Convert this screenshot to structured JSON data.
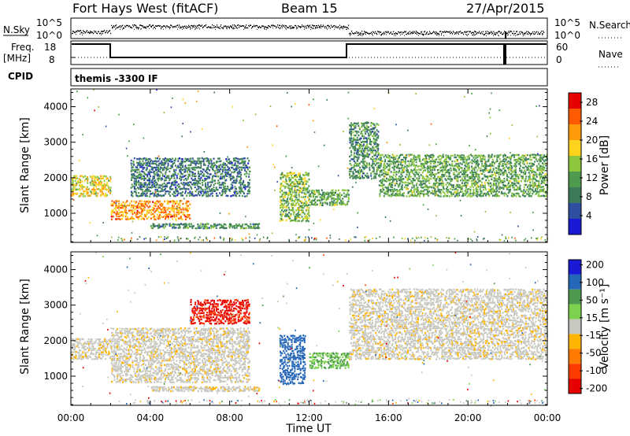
{
  "header": {
    "station": "Fort Hays West (fitACF)",
    "beam": "Beam 15",
    "date": "27/Apr/2015"
  },
  "status_panels": {
    "nsky_label": "N.Sky",
    "nsky_ticks": [
      "10^5",
      "10^0"
    ],
    "nsearch_label": "N.Search",
    "nsearch_ticks": [
      "10^5",
      "10^0"
    ],
    "freq_label_1": "Freq.",
    "freq_label_2": "[MHz]",
    "freq_ticks": [
      "18",
      "8"
    ],
    "nave_label": "Nave",
    "nave_ticks": [
      "60",
      "0"
    ],
    "cpid_label": "CPID",
    "cpid_value": "themis -3300 IF"
  },
  "colors": {
    "power_scale": [
      "#1a1ad6",
      "#2e4ea0",
      "#3c7a5a",
      "#4e9a4e",
      "#8cc63c",
      "#ffd21e",
      "#ff9a0a",
      "#ff5a00",
      "#e60000"
    ],
    "velocity_scale": [
      "#1a1ad6",
      "#2466b8",
      "#4e9a4e",
      "#7cd24e",
      "#c8c8c0",
      "#ffb400",
      "#ff7a00",
      "#ff3c00",
      "#e60000"
    ],
    "frame": "#000000"
  },
  "chart_data": [
    {
      "type": "heatmap",
      "title": "",
      "xlabel": "",
      "ylabel": "Slant Range [km]",
      "x_ticks": [
        "00:00",
        "04:00",
        "08:00",
        "12:00",
        "16:00",
        "20:00",
        "00:00"
      ],
      "y_ticks": [
        1000,
        2000,
        3000,
        4000
      ],
      "xlim_hours": [
        0,
        24
      ],
      "ylim_km": [
        180,
        4500
      ],
      "colorbar_label": "Power [dB]",
      "colorbar_ticks": [
        4,
        8,
        12,
        16,
        20,
        24,
        28
      ],
      "colorbar_range": [
        0,
        30
      ],
      "note_regions": [
        {
          "t0": 0.0,
          "t1": 2.0,
          "r0": 1500,
          "r1": 2100,
          "value": 18
        },
        {
          "t0": 2.0,
          "t1": 6.0,
          "r0": 850,
          "r1": 1400,
          "value": 22
        },
        {
          "t0": 3.0,
          "t1": 9.0,
          "r0": 1500,
          "r1": 2600,
          "value": 8
        },
        {
          "t0": 4.0,
          "t1": 9.5,
          "r0": 600,
          "r1": 750,
          "value": 10
        },
        {
          "t0": 10.5,
          "t1": 12.0,
          "r0": 800,
          "r1": 2200,
          "value": 14
        },
        {
          "t0": 12.0,
          "t1": 14.0,
          "r0": 1250,
          "r1": 1700,
          "value": 12
        },
        {
          "t0": 14.0,
          "t1": 15.5,
          "r0": 2000,
          "r1": 3600,
          "value": 10
        },
        {
          "t0": 15.5,
          "t1": 24.0,
          "r0": 1500,
          "r1": 2700,
          "value": 12
        }
      ]
    },
    {
      "type": "heatmap",
      "title": "",
      "xlabel": "Time UT",
      "ylabel": "Slant Range [km]",
      "x_ticks": [
        "00:00",
        "04:00",
        "08:00",
        "12:00",
        "16:00",
        "20:00",
        "00:00"
      ],
      "y_ticks": [
        1000,
        2000,
        3000,
        4000
      ],
      "xlim_hours": [
        0,
        24
      ],
      "ylim_km": [
        180,
        4500
      ],
      "colorbar_label": "Velocity [m s⁻¹]",
      "colorbar_ticks": [
        200,
        100,
        50,
        15,
        -15,
        -50,
        -100,
        -200
      ],
      "note_regions": [
        {
          "t0": 0.0,
          "t1": 2.0,
          "r0": 1500,
          "r1": 2100,
          "value": 0
        },
        {
          "t0": 2.0,
          "t1": 9.0,
          "r0": 850,
          "r1": 2400,
          "value": 0
        },
        {
          "t0": 6.0,
          "t1": 9.0,
          "r0": 2500,
          "r1": 3200,
          "value": -200
        },
        {
          "t0": 4.0,
          "t1": 9.5,
          "r0": 600,
          "r1": 750,
          "value": 0
        },
        {
          "t0": 10.5,
          "t1": 11.8,
          "r0": 800,
          "r1": 2200,
          "value": 60
        },
        {
          "t0": 12.0,
          "t1": 14.0,
          "r0": 1250,
          "r1": 1700,
          "value": 50
        },
        {
          "t0": 14.0,
          "t1": 24.0,
          "r0": 1500,
          "r1": 3500,
          "value": 0
        }
      ]
    }
  ]
}
